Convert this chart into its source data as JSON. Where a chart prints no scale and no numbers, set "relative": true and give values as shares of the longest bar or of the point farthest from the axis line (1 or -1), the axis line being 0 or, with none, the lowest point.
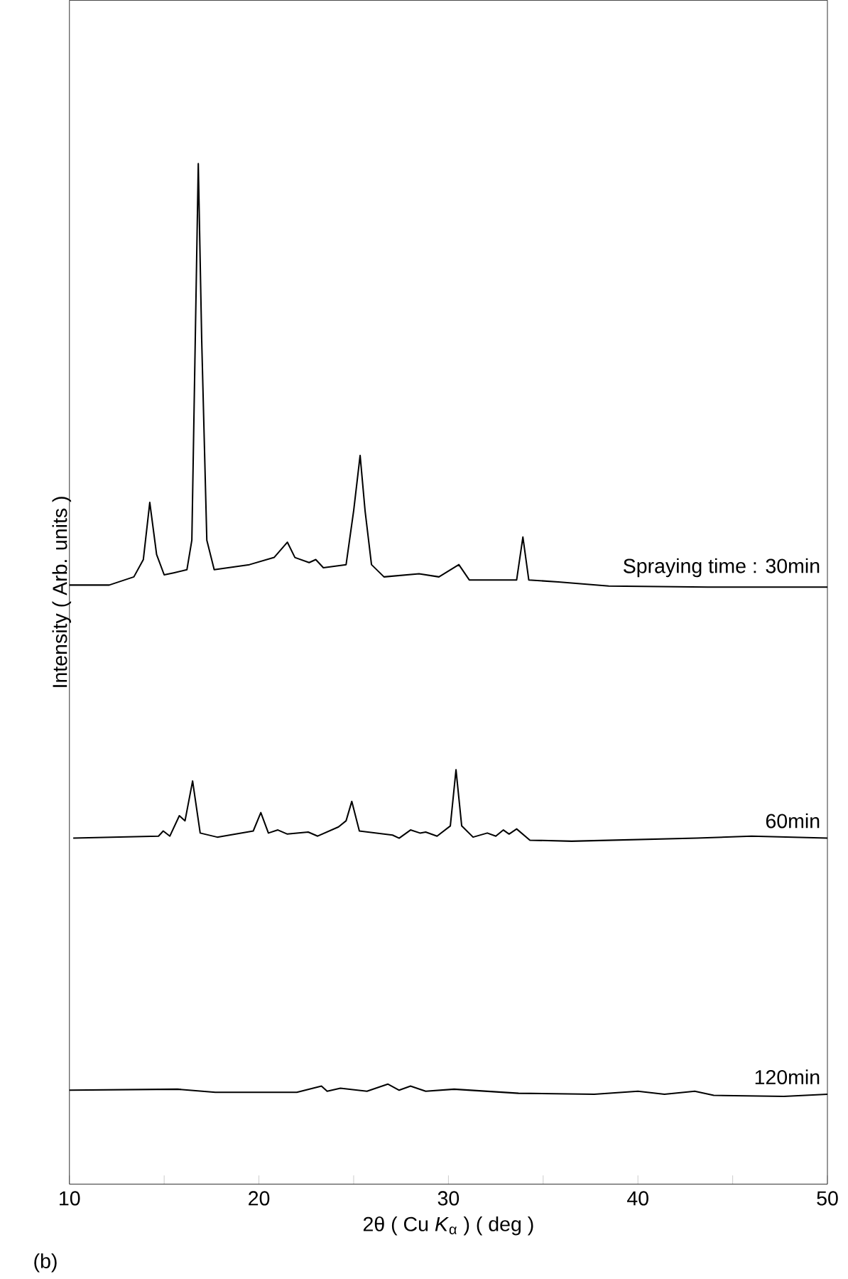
{
  "chart_data": {
    "type": "line",
    "relative": true,
    "xlabel": "2θ ( Cu *K*$_{α}$ ) ( deg )",
    "ylabel": "Intensity ( Arb. units )",
    "xlim": [
      10,
      50
    ],
    "xticks": [
      10,
      {
        "value": 15,
        "label": null
      },
      20,
      {
        "value": 25,
        "label": null
      },
      30,
      {
        "value": 35,
        "label": null
      },
      40,
      {
        "value": 45,
        "label": null
      },
      50
    ],
    "annotations": [
      "(b)"
    ],
    "series": [
      {
        "name": "Spraying time : 30min",
        "color": "#000000",
        "x": [
          10,
          12.1,
          13.4,
          13.9,
          14.24,
          14.6,
          15.0,
          15.5,
          16.2,
          16.46,
          16.64,
          16.8,
          16.98,
          17.25,
          17.64,
          19.5,
          20.8,
          21.5,
          21.9,
          22.65,
          23.0,
          23.4,
          24.6,
          25.0,
          25.34,
          25.6,
          25.94,
          26.6,
          28.45,
          29.5,
          30.55,
          31.1,
          33.6,
          33.93,
          34.24,
          35.8,
          38.46,
          43.7,
          50
        ],
        "values": [
          0.587,
          0.587,
          0.595,
          0.612,
          0.668,
          0.617,
          0.597,
          0.599,
          0.602,
          0.631,
          0.827,
          1.0,
          0.827,
          0.631,
          0.602,
          0.607,
          0.614,
          0.629,
          0.614,
          0.609,
          0.612,
          0.604,
          0.607,
          0.66,
          0.714,
          0.66,
          0.607,
          0.595,
          0.598,
          0.595,
          0.607,
          0.592,
          0.592,
          0.634,
          0.592,
          0.59,
          0.586,
          0.585,
          0.585
        ]
      },
      {
        "name": "60min",
        "color": "#000000",
        "x": [
          10.2,
          14.7,
          14.95,
          15.3,
          15.8,
          16.1,
          16.5,
          16.9,
          17.8,
          19.7,
          20.1,
          20.5,
          21.0,
          21.5,
          22.6,
          23.1,
          24.2,
          24.6,
          24.9,
          25.3,
          27.05,
          27.4,
          28.0,
          28.5,
          28.8,
          29.4,
          30.1,
          30.4,
          30.7,
          31.3,
          32.05,
          32.5,
          32.9,
          33.2,
          33.6,
          34.3,
          36.5,
          43.1,
          46.0,
          50
        ],
        "values": [
          0.339,
          0.341,
          0.346,
          0.341,
          0.361,
          0.356,
          0.395,
          0.344,
          0.34,
          0.346,
          0.364,
          0.344,
          0.347,
          0.343,
          0.345,
          0.341,
          0.35,
          0.356,
          0.375,
          0.346,
          0.342,
          0.339,
          0.347,
          0.344,
          0.345,
          0.341,
          0.351,
          0.406,
          0.351,
          0.34,
          0.344,
          0.341,
          0.347,
          0.343,
          0.348,
          0.337,
          0.336,
          0.339,
          0.341,
          0.339
        ]
      },
      {
        "name": "120min",
        "color": "#000000",
        "x": [
          10,
          15.7,
          17.7,
          22.0,
          23.3,
          23.6,
          24.3,
          25.7,
          26.8,
          27.4,
          28.0,
          28.8,
          30.3,
          33.7,
          37.7,
          40.0,
          41.4,
          43.0,
          44.0,
          47.7,
          50
        ],
        "values": [
          0.092,
          0.093,
          0.09,
          0.09,
          0.096,
          0.091,
          0.094,
          0.091,
          0.098,
          0.092,
          0.096,
          0.091,
          0.093,
          0.089,
          0.088,
          0.091,
          0.088,
          0.091,
          0.087,
          0.086,
          0.088
        ]
      }
    ]
  }
}
